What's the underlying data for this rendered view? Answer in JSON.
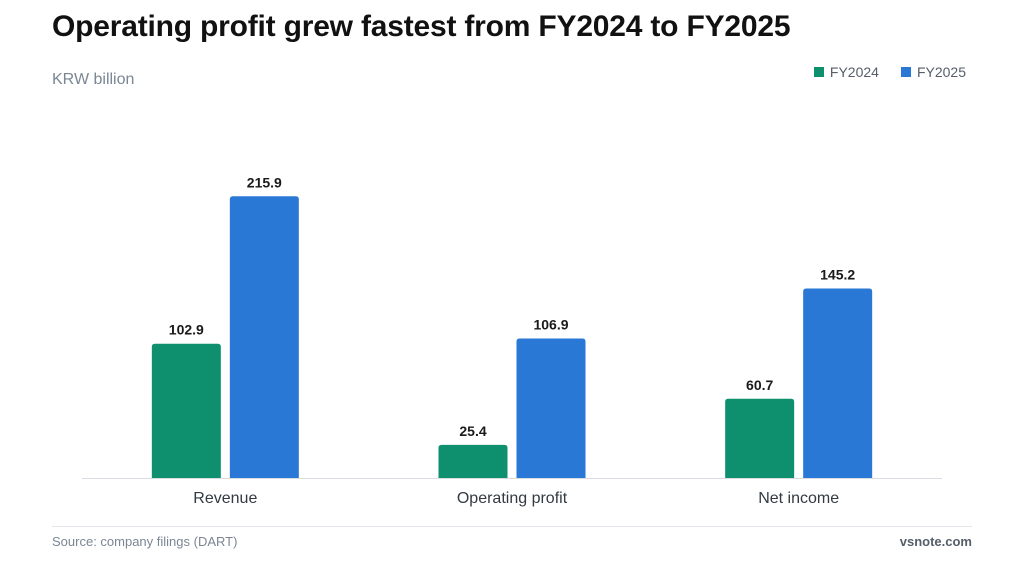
{
  "chart_data": {
    "type": "bar",
    "title": "Operating profit grew fastest from FY2024 to FY2025",
    "subtitle": "KRW billion",
    "categories": [
      "Revenue",
      "Operating profit",
      "Net income"
    ],
    "series": [
      {
        "name": "FY2024",
        "color": "#0e8f6e",
        "values": [
          102.9,
          25.4,
          60.7
        ]
      },
      {
        "name": "FY2025",
        "color": "#2a78d6",
        "values": [
          215.9,
          106.9,
          145.2
        ]
      }
    ],
    "ylim": [
      0,
      240
    ],
    "grid": false,
    "legend_position": "top-right",
    "data_labels": true
  },
  "footer": {
    "source": "Source: company filings (DART)",
    "brand": "vsnote.com"
  }
}
